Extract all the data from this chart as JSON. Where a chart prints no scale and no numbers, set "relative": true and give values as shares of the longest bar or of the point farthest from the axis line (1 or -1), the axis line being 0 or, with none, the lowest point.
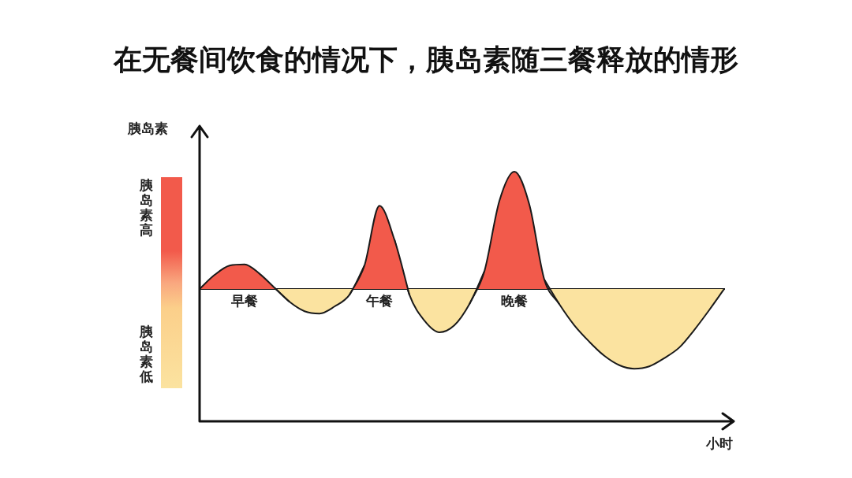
{
  "chart_data": {
    "type": "area",
    "relative": true,
    "title": "在无餐间饮食的情况下，胰岛素随三餐释放的情形",
    "ylabel": "胰岛素",
    "xlabel": "小时",
    "categories": [
      null,
      null,
      null,
      "早餐",
      null,
      null,
      null,
      null,
      null,
      null,
      null,
      null,
      "午餐",
      null,
      null,
      null,
      null,
      null,
      null,
      null,
      null,
      "晚餐",
      null,
      null,
      null,
      null,
      null,
      null,
      null,
      null,
      null,
      null,
      null,
      null,
      null,
      null
    ],
    "series": [
      {
        "color": "#f25a4b",
        "values": [
          0,
          0.12,
          0.2,
          0.21,
          0.13,
          0.01,
          -0.11,
          null,
          null,
          null,
          -0.05,
          0.2,
          0.71,
          0.42,
          -0.05,
          null,
          null,
          null,
          -0.13,
          0.15,
          0.75,
          1,
          0.72,
          0.08,
          -0.13,
          null,
          null,
          null,
          null,
          null,
          null,
          null,
          null,
          null,
          null,
          null
        ]
      },
      {
        "color": "#fbe3a0",
        "values": [
          null,
          null,
          null,
          null,
          null,
          0.01,
          -0.11,
          -0.19,
          -0.21,
          -0.15,
          -0.05,
          0.2,
          null,
          0.42,
          -0.05,
          -0.27,
          -0.37,
          -0.31,
          -0.13,
          0.15,
          null,
          null,
          null,
          0.08,
          -0.13,
          -0.31,
          -0.45,
          -0.57,
          -0.65,
          -0.68,
          -0.66,
          -0.59,
          -0.5,
          -0.35,
          -0.18,
          0
        ]
      }
    ],
    "annotations": [
      "胰岛素高",
      "胰岛素低"
    ]
  }
}
